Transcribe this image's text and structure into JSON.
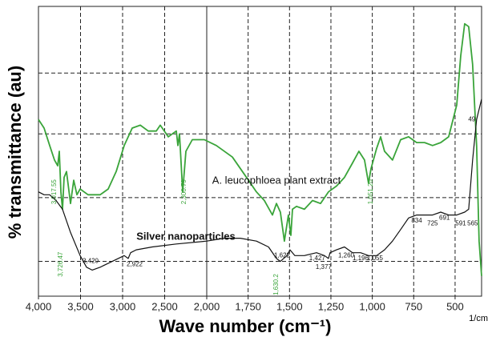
{
  "chart_data": {
    "type": "line",
    "x_label": "Wave number (cm⁻¹)",
    "x_unit": "1/cm",
    "y_label": "% transmittance (au)",
    "xlim": [
      4000,
      340
    ],
    "x_scale_change_at": 2000,
    "xticks": [
      {
        "value": 4000,
        "label": "4,000"
      },
      {
        "value": 3500,
        "label": "3,500"
      },
      {
        "value": 3000,
        "label": "3,000"
      },
      {
        "value": 2500,
        "label": "2,500"
      },
      {
        "value": 2000,
        "label": "2,000"
      },
      {
        "value": 1750,
        "label": "1,750"
      },
      {
        "value": 1500,
        "label": "1,500"
      },
      {
        "value": 1250,
        "label": "1,250"
      },
      {
        "value": 1000,
        "label": "1,000"
      },
      750,
      500
    ],
    "ylim": [
      0,
      100
    ],
    "ygrid": [
      12,
      34,
      56,
      77
    ],
    "grid": true,
    "series": [
      {
        "name": "A. leucophloea plant extract",
        "color": "#3aa43a",
        "x": [
          4000,
          3933,
          3867,
          3810,
          3771,
          3752,
          3733,
          3714,
          3695,
          3667,
          3619,
          3581,
          3543,
          3505,
          3410,
          3267,
          3171,
          3076,
          2981,
          2886,
          2790,
          2695,
          2600,
          2552,
          2457,
          2362,
          2343,
          2324,
          2286,
          2248,
          2171,
          2029,
          1942,
          1845,
          1748,
          1700,
          1652,
          1603,
          1579,
          1555,
          1531,
          1507,
          1492,
          1482,
          1458,
          1410,
          1361,
          1313,
          1265,
          1216,
          1168,
          1119,
          1081,
          1047,
          1023,
          1008,
          974,
          950,
          926,
          878,
          829,
          781,
          732,
          684,
          636,
          587,
          539,
          490,
          466,
          442,
          418,
          394,
          370,
          355,
          340
        ],
        "values": [
          61,
          58,
          52,
          47,
          45,
          50,
          36,
          30,
          41,
          43,
          32,
          40,
          35,
          37,
          35,
          35,
          37,
          43,
          52,
          58,
          59,
          57,
          57,
          59,
          55,
          57,
          52,
          56,
          36,
          50,
          54,
          54,
          52,
          48,
          40,
          36,
          33,
          28,
          32,
          29,
          19,
          28,
          21,
          30,
          31,
          30,
          33,
          32,
          36,
          38,
          41,
          46,
          50,
          47,
          39,
          44,
          51,
          55,
          50,
          47,
          54,
          55,
          53,
          53,
          52,
          53,
          55,
          66,
          83,
          94,
          93,
          80,
          52,
          19,
          7
        ]
      },
      {
        "name": "Silver nanoparticles",
        "color": "#111111",
        "x": [
          4000,
          3933,
          3867,
          3790,
          3714,
          3619,
          3505,
          3429,
          3362,
          3267,
          3124,
          2981,
          2933,
          2905,
          2838,
          2648,
          2362,
          2000,
          1894,
          1797,
          1700,
          1627,
          1579,
          1555,
          1516,
          1497,
          1468,
          1410,
          1337,
          1289,
          1265,
          1255,
          1216,
          1168,
          1119,
          1071,
          1023,
          974,
          926,
          878,
          829,
          781,
          732,
          684,
          636,
          587,
          539,
          490,
          442,
          418,
          394,
          370,
          340
        ],
        "values": [
          36,
          35,
          35,
          33,
          30,
          22,
          14,
          10,
          9,
          10,
          12,
          14,
          13,
          15,
          16,
          17,
          18,
          19,
          20,
          20,
          19,
          17,
          13,
          12,
          14,
          16,
          14,
          14,
          15,
          14,
          13,
          15,
          16,
          17,
          15,
          15,
          14,
          14,
          16,
          19,
          23,
          27,
          28,
          28,
          28,
          29,
          28,
          28,
          29,
          30,
          47,
          61,
          68
        ]
      }
    ],
    "annotations": [
      {
        "text": "3,017.55",
        "x": 3810,
        "y": 36,
        "color": "#3aa43a",
        "rotate": true
      },
      {
        "text": "3,726.47",
        "x": 3733,
        "y": 11,
        "color": "#3aa43a",
        "rotate": true
      },
      {
        "text": "2,300.79",
        "x": 2267,
        "y": 36,
        "color": "#3aa43a",
        "rotate": true
      },
      {
        "text": "1,630.2",
        "x": 1579,
        "y": 4,
        "color": "#3aa43a",
        "rotate": true
      },
      {
        "text": "1,051.20",
        "x": 1008,
        "y": 36,
        "color": "#3aa43a",
        "rotate": true
      },
      {
        "text": "3,420",
        "x": 3381,
        "y": 12,
        "color": "#111111",
        "rotate": false
      },
      {
        "text": "2,922",
        "x": 2857,
        "y": 11,
        "color": "#111111",
        "rotate": false
      },
      {
        "text": "1,622",
        "x": 1545,
        "y": 14,
        "color": "#111111",
        "rotate": false
      },
      {
        "text": "1,427",
        "x": 1333,
        "y": 13,
        "color": "#111111",
        "rotate": false
      },
      {
        "text": "1,377",
        "x": 1294,
        "y": 10,
        "color": "#111111",
        "rotate": false
      },
      {
        "text": "1,260",
        "x": 1158,
        "y": 14,
        "color": "#111111",
        "rotate": false
      },
      {
        "text": "1,196",
        "x": 1071,
        "y": 13,
        "color": "#111111",
        "rotate": false
      },
      {
        "text": "1,055",
        "x": 984,
        "y": 13,
        "color": "#111111",
        "rotate": false
      },
      {
        "text": "834",
        "x": 732,
        "y": 26,
        "color": "#111111",
        "rotate": false
      },
      {
        "text": "725",
        "x": 636,
        "y": 25,
        "color": "#111111",
        "rotate": false
      },
      {
        "text": "691",
        "x": 564,
        "y": 27,
        "color": "#111111",
        "rotate": false
      },
      {
        "text": "591",
        "x": 466,
        "y": 25,
        "color": "#111111",
        "rotate": false
      },
      {
        "text": "565",
        "x": 394,
        "y": 25,
        "color": "#111111",
        "rotate": false
      },
      {
        "text": "49",
        "x": 399,
        "y": 61,
        "color": "#111111",
        "rotate": false
      }
    ]
  }
}
